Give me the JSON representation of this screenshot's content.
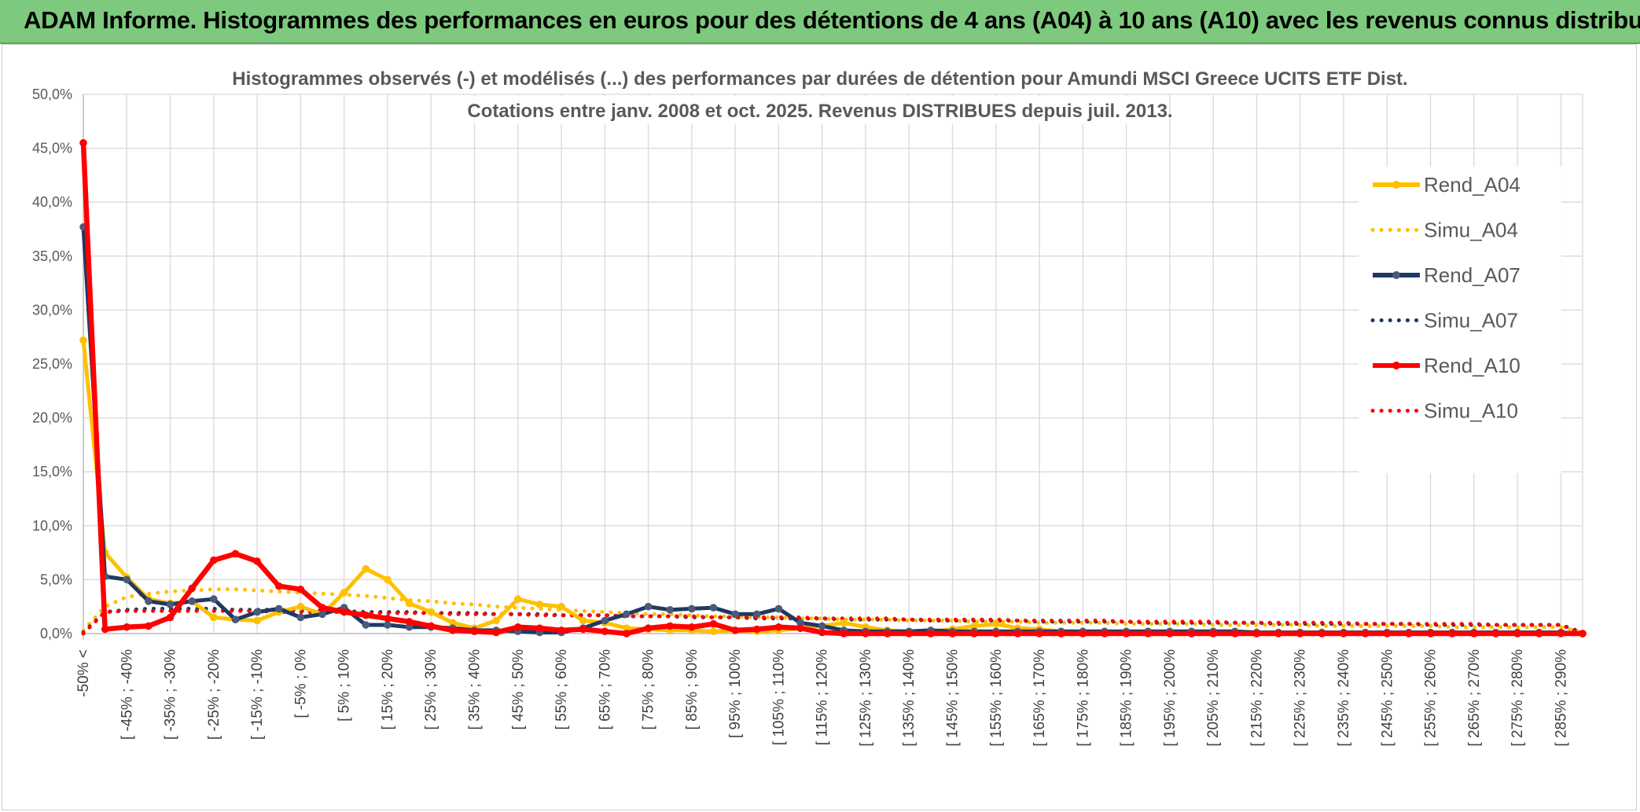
{
  "banner": {
    "title": "ADAM Informe. Histogrammes des performances en euros pour des détentions de 4 ans (A04) à 10 ans (A10) avec les revenus connus distribués"
  },
  "colors": {
    "banner_bg": "#7dc97d",
    "A04": "#ffc000",
    "A07": "#1f3864",
    "A07_marker": "#4a5a78",
    "A10": "#ff0000",
    "grid": "#d9d9d9"
  },
  "chart_data": {
    "type": "line",
    "title_lines": [
      "Histogrammes observés (-) et modélisés (...) des performances par durées de détention pour Amundi MSCI Greece UCITS ETF Dist.",
      "Cotations entre janv. 2008 et oct. 2025. Revenus DISTRIBUES depuis juil. 2013."
    ],
    "ylim": [
      0,
      50
    ],
    "y_ticks": [
      "0,0%",
      "5,0%",
      "10,0%",
      "15,0%",
      "20,0%",
      "25,0%",
      "30,0%",
      "35,0%",
      "40,0%",
      "45,0%",
      "50,0%"
    ],
    "grid": true,
    "legend_position": "right",
    "x_tick_labels": [
      "-50% <",
      "[ -45% ; -40%",
      "[ -35% ; -30%",
      "[ -25% ; -20%",
      "[ -15% ; -10%",
      "[ -5% ; 0%",
      "[ 5% ; 10%",
      "[ 15% ; 20%",
      "[ 25% ; 30%",
      "[ 35% ; 40%",
      "[ 45% ; 50%",
      "[ 55% ; 60%",
      "[ 65% ; 70%",
      "[ 75% ; 80%",
      "[ 85% ; 90%",
      "[ 95% ; 100%",
      "[ 105% ; 110%",
      "[ 115% ; 120%",
      "[ 125% ; 130%",
      "[ 135% ; 140%",
      "[ 145% ; 150%",
      "[ 155% ; 160%",
      "[ 165% ; 170%",
      "[ 175% ; 180%",
      "[ 185% ; 190%",
      "[ 195% ; 200%",
      "[ 205% ; 210%",
      "[ 215% ; 220%",
      "[ 225% ; 230%",
      "[ 235% ; 240%",
      "[ 245% ; 250%",
      "[ 255% ; 260%",
      "[ 265% ; 270%",
      "[ 275% ; 280%",
      "[ 285% ; 290%"
    ],
    "series": [
      {
        "name": "Rend_A04",
        "style": "solid",
        "values": [
          27.2,
          7.5,
          5.2,
          3.2,
          2.8,
          3.0,
          1.5,
          1.3,
          1.2,
          2.0,
          2.5,
          1.8,
          3.8,
          6.0,
          5.0,
          2.8,
          2.0,
          1.0,
          0.5,
          1.2,
          3.2,
          2.7,
          2.5,
          1.2,
          1.0,
          0.5,
          0.4,
          0.3,
          0.3,
          0.2,
          0.3,
          0.2,
          0.3,
          0.5,
          0.7,
          1.0,
          0.6,
          0.3,
          0.2,
          0.2,
          0.4,
          0.7,
          0.9,
          0.5,
          0.4,
          0.2,
          0.1,
          0.2,
          0.1,
          0.1,
          0.1,
          0.1,
          0.1,
          0.1,
          0.1,
          0.1,
          0.1,
          0.1,
          0.1,
          0.1,
          0.1,
          0.1,
          0.1,
          0.1,
          0.1,
          0.1,
          0.1,
          0.1,
          0.1,
          0.0
        ]
      },
      {
        "name": "Simu_A04",
        "style": "dotted",
        "values": [
          0.3,
          2.5,
          3.4,
          3.7,
          3.9,
          4.0,
          4.1,
          4.1,
          4.0,
          3.9,
          3.8,
          3.7,
          3.6,
          3.5,
          3.3,
          3.1,
          3.0,
          2.8,
          2.7,
          2.5,
          2.4,
          2.3,
          2.2,
          2.1,
          2.0,
          1.9,
          1.8,
          1.8,
          1.7,
          1.6,
          1.6,
          1.5,
          1.5,
          1.4,
          1.4,
          1.3,
          1.3,
          1.3,
          1.2,
          1.2,
          1.2,
          1.1,
          1.1,
          1.1,
          1.0,
          1.0,
          1.0,
          1.0,
          0.9,
          0.9,
          0.9,
          0.9,
          0.8,
          0.8,
          0.8,
          0.8,
          0.8,
          0.7,
          0.7,
          0.7,
          0.7,
          0.7,
          0.7,
          0.6,
          0.6,
          0.6,
          0.6,
          0.6,
          0.6,
          0.1
        ]
      },
      {
        "name": "Rend_A07",
        "style": "solid",
        "values": [
          37.7,
          5.3,
          5.0,
          3.0,
          2.7,
          3.0,
          3.2,
          1.3,
          2.0,
          2.3,
          1.5,
          1.8,
          2.4,
          0.8,
          0.8,
          0.6,
          0.6,
          0.5,
          0.3,
          0.3,
          0.2,
          0.1,
          0.1,
          0.5,
          1.2,
          1.8,
          2.5,
          2.2,
          2.3,
          2.4,
          1.8,
          1.8,
          2.3,
          1.0,
          0.7,
          0.3,
          0.2,
          0.2,
          0.2,
          0.3,
          0.2,
          0.2,
          0.2,
          0.2,
          0.2,
          0.2,
          0.2,
          0.2,
          0.2,
          0.2,
          0.2,
          0.2,
          0.2,
          0.2,
          0.1,
          0.1,
          0.1,
          0.1,
          0.1,
          0.1,
          0.1,
          0.1,
          0.1,
          0.1,
          0.1,
          0.1,
          0.1,
          0.1,
          0.1,
          0.0
        ]
      },
      {
        "name": "Simu_A07",
        "style": "dotted",
        "values": [
          0.1,
          2.0,
          2.2,
          2.3,
          2.3,
          2.3,
          2.3,
          2.2,
          2.2,
          2.2,
          2.1,
          2.1,
          2.1,
          2.0,
          2.0,
          2.0,
          1.9,
          1.9,
          1.9,
          1.8,
          1.8,
          1.8,
          1.7,
          1.7,
          1.7,
          1.6,
          1.6,
          1.6,
          1.5,
          1.5,
          1.5,
          1.4,
          1.4,
          1.4,
          1.4,
          1.3,
          1.3,
          1.3,
          1.3,
          1.2,
          1.2,
          1.2,
          1.2,
          1.2,
          1.1,
          1.1,
          1.1,
          1.1,
          1.1,
          1.0,
          1.0,
          1.0,
          1.0,
          1.0,
          1.0,
          0.9,
          0.9,
          0.9,
          0.9,
          0.9,
          0.9,
          0.9,
          0.8,
          0.8,
          0.8,
          0.8,
          0.8,
          0.8,
          0.8,
          0.1
        ]
      },
      {
        "name": "Rend_A10",
        "style": "solid",
        "values": [
          45.5,
          0.4,
          0.6,
          0.7,
          1.5,
          4.2,
          6.8,
          7.4,
          6.7,
          4.4,
          4.1,
          2.4,
          2.0,
          1.7,
          1.4,
          1.1,
          0.7,
          0.3,
          0.2,
          0.1,
          0.6,
          0.5,
          0.3,
          0.4,
          0.2,
          0.0,
          0.5,
          0.7,
          0.6,
          0.9,
          0.3,
          0.4,
          0.6,
          0.5,
          0.1,
          0.0,
          0.0,
          0.0,
          0.0,
          0.0,
          0.0,
          0.0,
          0.0,
          0.0,
          0.0,
          0.0,
          0.0,
          0.0,
          0.0,
          0.0,
          0.0,
          0.0,
          0.0,
          0.0,
          0.0,
          0.0,
          0.0,
          0.0,
          0.0,
          0.0,
          0.0,
          0.0,
          0.0,
          0.0,
          0.0,
          0.0,
          0.0,
          0.0,
          0.0,
          0.0
        ]
      },
      {
        "name": "Simu_A10",
        "style": "dotted",
        "values": [
          0.0,
          2.0,
          2.1,
          2.1,
          2.1,
          2.1,
          2.1,
          2.1,
          2.1,
          2.0,
          2.0,
          2.0,
          2.0,
          1.9,
          1.9,
          1.9,
          1.9,
          1.8,
          1.8,
          1.8,
          1.8,
          1.7,
          1.7,
          1.7,
          1.7,
          1.6,
          1.6,
          1.6,
          1.6,
          1.5,
          1.5,
          1.5,
          1.5,
          1.5,
          1.4,
          1.4,
          1.4,
          1.4,
          1.3,
          1.3,
          1.3,
          1.3,
          1.3,
          1.2,
          1.2,
          1.2,
          1.2,
          1.2,
          1.1,
          1.1,
          1.1,
          1.1,
          1.1,
          1.0,
          1.0,
          1.0,
          1.0,
          1.0,
          1.0,
          0.9,
          0.9,
          0.9,
          0.9,
          0.9,
          0.9,
          0.8,
          0.8,
          0.8,
          0.8,
          0.0
        ]
      }
    ]
  }
}
